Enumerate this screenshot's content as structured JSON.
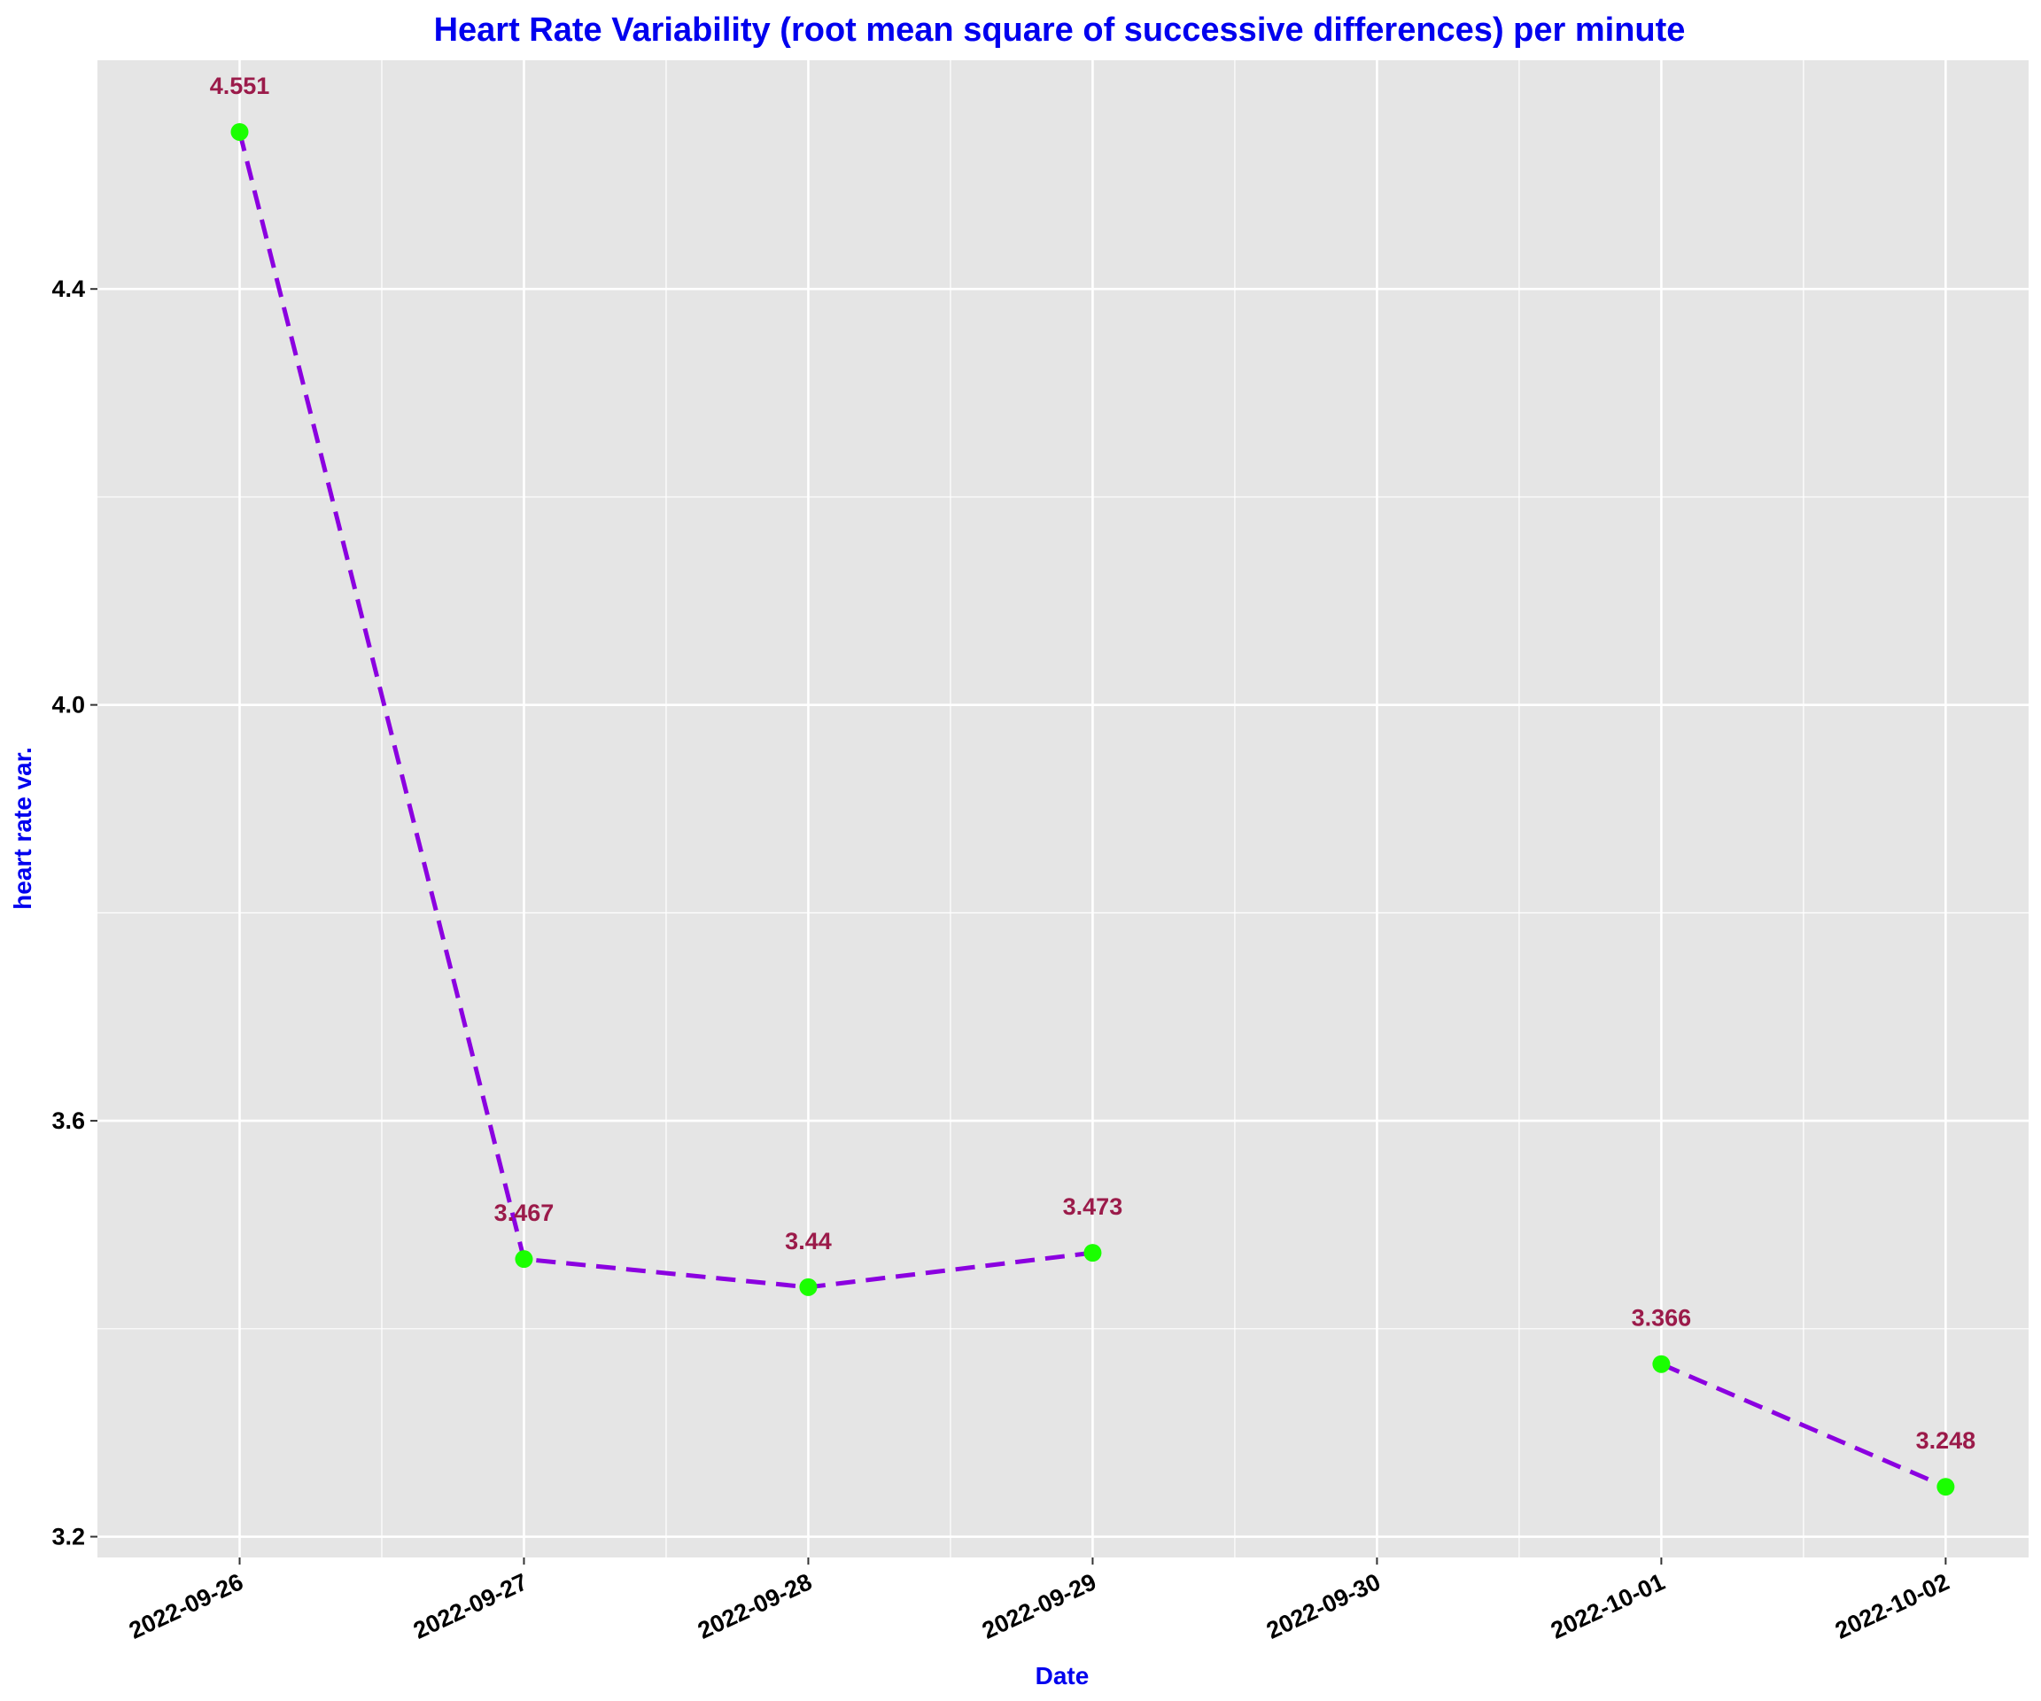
{
  "chart_data": {
    "type": "line",
    "title": "Heart Rate Variability (root mean square of successive differences) per minute",
    "xlabel": "Date",
    "ylabel": "heart rate var.",
    "x_ticks": [
      "2022-09-26",
      "2022-09-27",
      "2022-09-28",
      "2022-09-29",
      "2022-09-30",
      "2022-10-01",
      "2022-10-02"
    ],
    "y_ticks": [
      "3.2",
      "3.6",
      "4.0",
      "4.4"
    ],
    "y_tick_values": [
      3.2,
      3.6,
      4.0,
      4.4
    ],
    "xlim": [
      "2022-09-25T12:00",
      "2022-10-02T07:00"
    ],
    "ylim": [
      3.18,
      4.62
    ],
    "grid": true,
    "legend": "none",
    "segments": [
      [
        {
          "x": "2022-09-26",
          "y": 4.551,
          "label": "4.551"
        },
        {
          "x": "2022-09-27",
          "y": 3.467,
          "label": "3.467"
        },
        {
          "x": "2022-09-28",
          "y": 3.44,
          "label": "3.44"
        },
        {
          "x": "2022-09-29",
          "y": 3.473,
          "label": "3.473"
        }
      ],
      [
        {
          "x": "2022-10-01",
          "y": 3.366,
          "label": "3.366"
        },
        {
          "x": "2022-10-02",
          "y": 3.248,
          "label": "3.248"
        }
      ]
    ],
    "colors": {
      "line": "#8b00e0",
      "point": "#1aff00",
      "data_label": "#9b1b4a",
      "title": "#0000ee",
      "axis_title": "#0000ee",
      "panel": "#e5e5e5",
      "grid": "#ffffff"
    }
  }
}
